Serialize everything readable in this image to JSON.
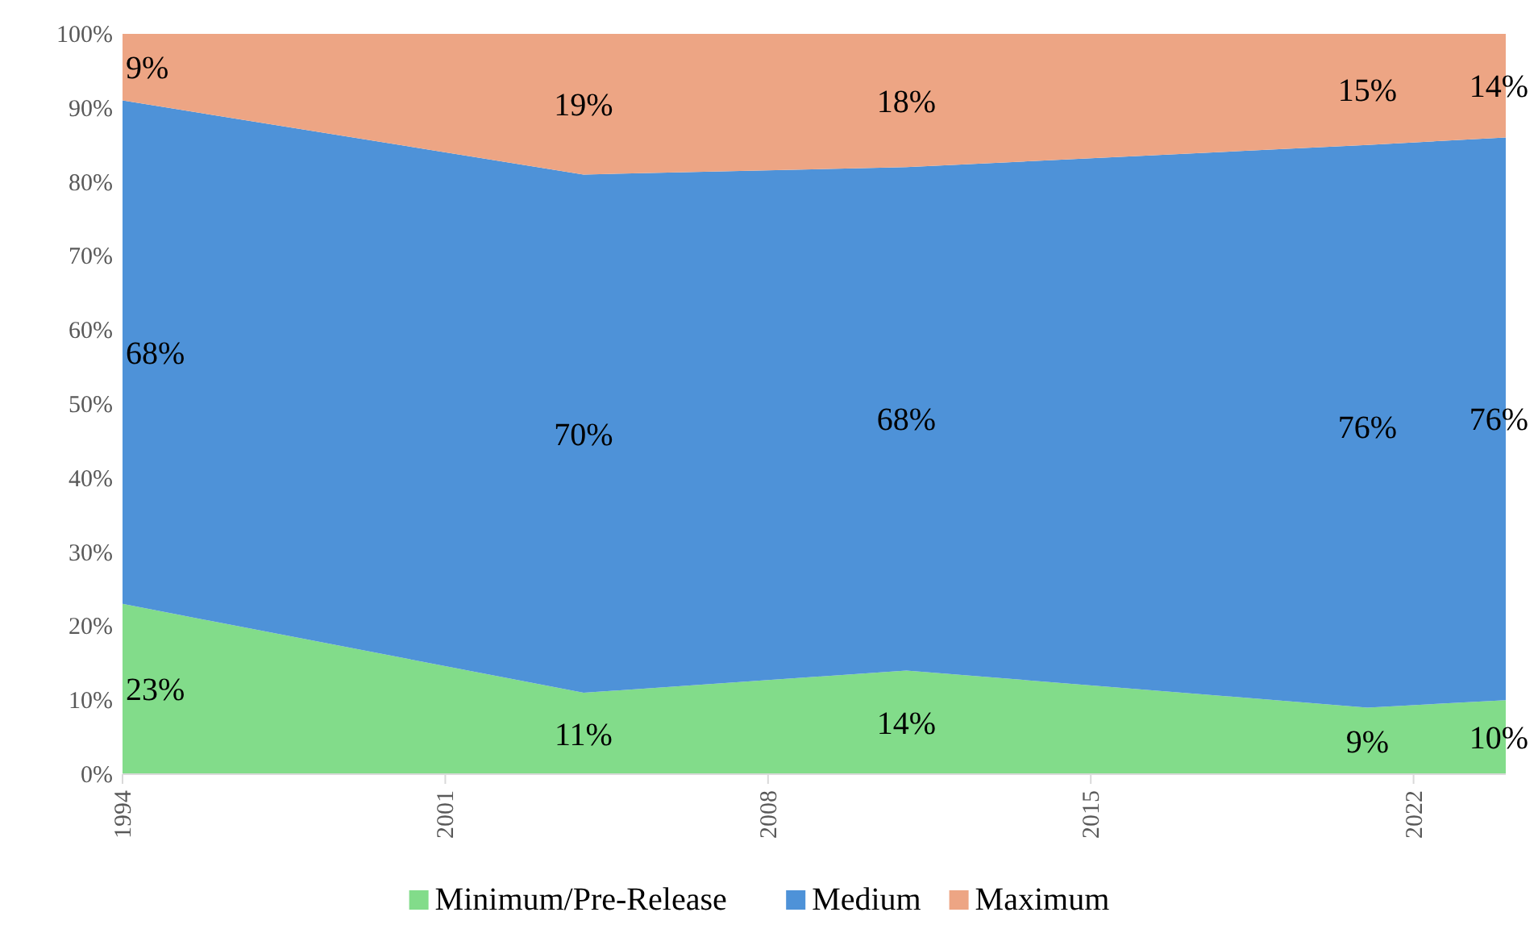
{
  "chart_data": {
    "type": "area",
    "stacked": true,
    "x": [
      1994,
      2004,
      2011,
      2021,
      2024
    ],
    "series": [
      {
        "name": "Minimum/Pre-Release",
        "color": "#82dc8a",
        "values": [
          23,
          11,
          14,
          9,
          10
        ]
      },
      {
        "name": "Medium",
        "color": "#4e92d8",
        "values": [
          68,
          70,
          68,
          76,
          76
        ]
      },
      {
        "name": "Maximum",
        "color": "#eda584",
        "values": [
          9,
          19,
          18,
          15,
          14
        ]
      }
    ],
    "xlim": [
      1994,
      2024
    ],
    "xticks": [
      1994,
      2001,
      2008,
      2015,
      2022
    ],
    "ylim": [
      0,
      100
    ],
    "yticks": [
      {
        "value": 0,
        "label": "0%"
      },
      {
        "value": 10,
        "label": "10%"
      },
      {
        "value": 20,
        "label": "20%"
      },
      {
        "value": 30,
        "label": "30%"
      },
      {
        "value": 40,
        "label": "40%"
      },
      {
        "value": 50,
        "label": "50%"
      },
      {
        "value": 60,
        "label": "60%"
      },
      {
        "value": 70,
        "label": "70%"
      },
      {
        "value": 80,
        "label": "80%"
      },
      {
        "value": 90,
        "label": "90%"
      },
      {
        "value": 100,
        "label": "100%"
      }
    ],
    "value_labels": [
      [
        "23%",
        "11%",
        "14%",
        "9%",
        "10%"
      ],
      [
        "68%",
        "70%",
        "68%",
        "76%",
        "76%"
      ],
      [
        "9%",
        "19%",
        "18%",
        "15%",
        "14%"
      ]
    ],
    "legend": "bottom"
  }
}
